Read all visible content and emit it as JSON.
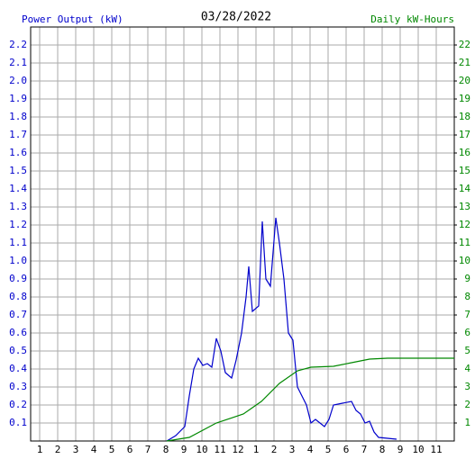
{
  "chart_data": {
    "type": "line",
    "title": "03/28/2022",
    "y_label": "Power Output (kW)",
    "y2_label": "Daily kW-Hours",
    "xlim": [
      0.5,
      24
    ],
    "xticks": [
      1,
      2,
      3,
      4,
      5,
      6,
      7,
      8,
      9,
      10,
      11,
      12,
      {
        "value": 13,
        "label": "1"
      },
      {
        "value": 14,
        "label": "2"
      },
      {
        "value": 15,
        "label": "3"
      },
      {
        "value": 16,
        "label": "4"
      },
      {
        "value": 17,
        "label": "5"
      },
      {
        "value": 18,
        "label": "6"
      },
      {
        "value": 19,
        "label": "7"
      },
      {
        "value": 20,
        "label": "8"
      },
      {
        "value": 21,
        "label": "9"
      },
      {
        "value": 22,
        "label": "10"
      },
      {
        "value": 23,
        "label": "11"
      }
    ],
    "ylim": [
      0,
      2.3
    ],
    "yticks": [
      0.1,
      0.2,
      0.3,
      0.4,
      0.5,
      0.6,
      0.7,
      0.8,
      0.9,
      {
        "value": 1,
        "label": "1.0"
      },
      1.1,
      1.2,
      1.3,
      1.4,
      1.5,
      1.6,
      1.7,
      1.8,
      1.9,
      {
        "value": 2,
        "label": "2.0"
      },
      2.1,
      2.2
    ],
    "y2lim": [
      0,
      23
    ],
    "y2ticks": [
      1,
      2,
      3,
      4,
      5,
      6,
      7,
      8,
      9,
      10,
      11,
      12,
      13,
      14,
      15,
      16,
      17,
      18,
      19,
      20,
      21,
      22
    ],
    "grid": true,
    "series": [
      {
        "name": "Power Output (kW)",
        "color": "#0000cc",
        "x": [
          8.05,
          8.55,
          9.05,
          9.3,
          9.55,
          9.8,
          10.05,
          10.3,
          10.55,
          10.8,
          11.05,
          11.3,
          11.65,
          11.9,
          12.2,
          12.45,
          12.6,
          12.8,
          13.15,
          13.35,
          13.55,
          13.8,
          14.1,
          14.3,
          14.55,
          14.8,
          15.05,
          15.3,
          15.55,
          15.8,
          16.05,
          16.3,
          16.55,
          16.8,
          17.05,
          17.3,
          17.8,
          18.3,
          18.55,
          18.8,
          19.05,
          19.3,
          19.55,
          19.8,
          20.8
        ],
        "values": [
          0,
          0.03,
          0.08,
          0.25,
          0.4,
          0.46,
          0.42,
          0.43,
          0.41,
          0.57,
          0.5,
          0.38,
          0.35,
          0.45,
          0.6,
          0.8,
          0.97,
          0.72,
          0.75,
          1.22,
          0.9,
          0.86,
          1.24,
          1.1,
          0.9,
          0.6,
          0.56,
          0.3,
          0.25,
          0.2,
          0.1,
          0.12,
          0.1,
          0.08,
          0.12,
          0.2,
          0.21,
          0.22,
          0.17,
          0.15,
          0.1,
          0.11,
          0.05,
          0.02,
          0.01
        ]
      },
      {
        "name": "Daily kW-Hours",
        "color": "#008800",
        "axis": "y2",
        "x": [
          8.05,
          9.3,
          10.8,
          12.3,
          13.3,
          14.3,
          15.3,
          16.05,
          17.3,
          18.3,
          19.3,
          20.3,
          24
        ],
        "values": [
          0,
          0.2,
          1.0,
          1.5,
          2.2,
          3.2,
          3.9,
          4.1,
          4.15,
          4.35,
          4.55,
          4.6,
          4.6
        ]
      }
    ]
  }
}
